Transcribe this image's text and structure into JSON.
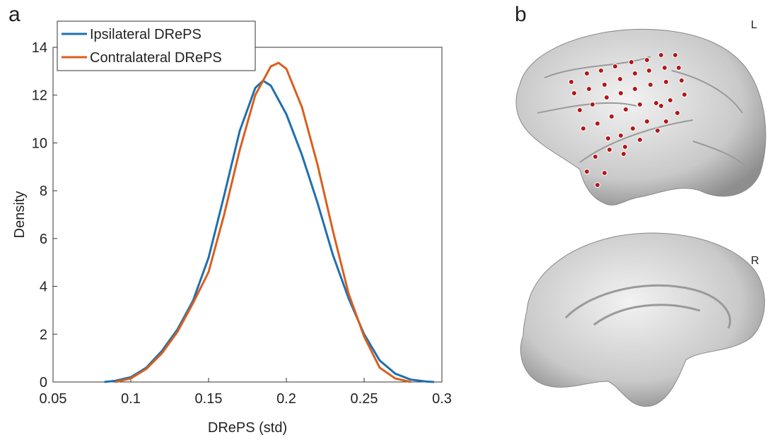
{
  "panel_a_label": "a",
  "panel_b_label": "b",
  "view_top_label": "L",
  "view_bottom_label": "R",
  "chart_data": {
    "type": "line",
    "xlabel": "DRePS (std)",
    "ylabel": "Density",
    "xlim": [
      0.05,
      0.3
    ],
    "ylim": [
      0,
      14
    ],
    "xticks": [
      0.05,
      0.1,
      0.15,
      0.2,
      0.25,
      0.3
    ],
    "yticks": [
      0,
      2,
      4,
      6,
      8,
      10,
      12,
      14
    ],
    "legend": "upper-left",
    "grid": false,
    "series": [
      {
        "name": "Ipsilateral DRePS",
        "color": "#1f6fb0",
        "x": [
          0.083,
          0.09,
          0.1,
          0.11,
          0.12,
          0.13,
          0.14,
          0.15,
          0.16,
          0.17,
          0.18,
          0.185,
          0.19,
          0.2,
          0.21,
          0.22,
          0.23,
          0.24,
          0.25,
          0.26,
          0.27,
          0.28,
          0.29,
          0.295
        ],
        "values": [
          0,
          0.05,
          0.2,
          0.6,
          1.3,
          2.2,
          3.4,
          5.2,
          7.8,
          10.5,
          12.3,
          12.6,
          12.4,
          11.2,
          9.5,
          7.5,
          5.3,
          3.5,
          2.0,
          0.9,
          0.35,
          0.1,
          0.02,
          0
        ]
      },
      {
        "name": "Contralateral DRePS",
        "color": "#d95f1e",
        "x": [
          0.09,
          0.1,
          0.11,
          0.12,
          0.13,
          0.14,
          0.15,
          0.16,
          0.17,
          0.18,
          0.19,
          0.195,
          0.2,
          0.21,
          0.22,
          0.23,
          0.24,
          0.25,
          0.26,
          0.27,
          0.28
        ],
        "values": [
          0,
          0.15,
          0.55,
          1.2,
          2.1,
          3.3,
          4.6,
          7.0,
          9.7,
          12.0,
          13.2,
          13.35,
          13.1,
          11.5,
          9.1,
          6.3,
          3.7,
          1.9,
          0.6,
          0.15,
          0
        ]
      }
    ]
  }
}
